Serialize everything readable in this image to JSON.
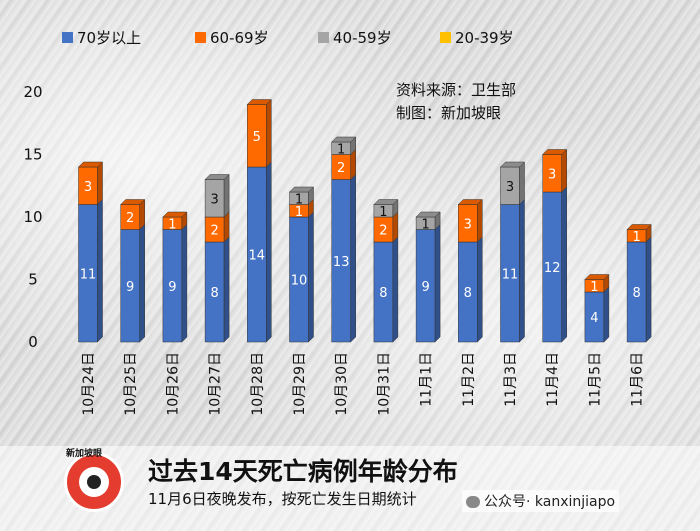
{
  "chart_data": {
    "type": "bar",
    "stacked": true,
    "categories": [
      "10月24日",
      "10月25日",
      "10月26日",
      "10月27日",
      "10月28日",
      "10月29日",
      "10月30日",
      "10月31日",
      "11月1日",
      "11月2日",
      "11月3日",
      "11月4日",
      "11月5日",
      "11月6日"
    ],
    "series": [
      {
        "name": "70岁以上",
        "color": "#4472c4",
        "values": [
          11,
          9,
          9,
          8,
          14,
          10,
          13,
          8,
          9,
          8,
          11,
          12,
          4,
          8
        ]
      },
      {
        "name": "60-69岁",
        "color": "#ff6a00",
        "values": [
          3,
          2,
          1,
          2,
          5,
          1,
          2,
          2,
          0,
          3,
          0,
          3,
          1,
          1
        ]
      },
      {
        "name": "40-59岁",
        "color": "#a5a5a5",
        "values": [
          0,
          0,
          0,
          3,
          0,
          1,
          1,
          1,
          1,
          0,
          3,
          0,
          0,
          0
        ]
      },
      {
        "name": "20-39岁",
        "color": "#ffc000",
        "values": [
          0,
          0,
          0,
          0,
          0,
          0,
          0,
          0,
          0,
          0,
          0,
          0,
          0,
          0
        ]
      }
    ],
    "yticks": [
      0,
      5,
      10,
      15,
      20
    ],
    "ylim": [
      0,
      20
    ],
    "legend": "top",
    "grid": false,
    "annotations": [
      "资料来源：卫生部",
      "制图：新加坡眼"
    ]
  },
  "footer": {
    "logo_text": "新加坡眼",
    "title": "过去14天死亡病例年龄分布",
    "subtitle": "11月6日夜晚发布，按死亡发生日期统计",
    "watermark": "公众号· kanxinjiapo"
  }
}
